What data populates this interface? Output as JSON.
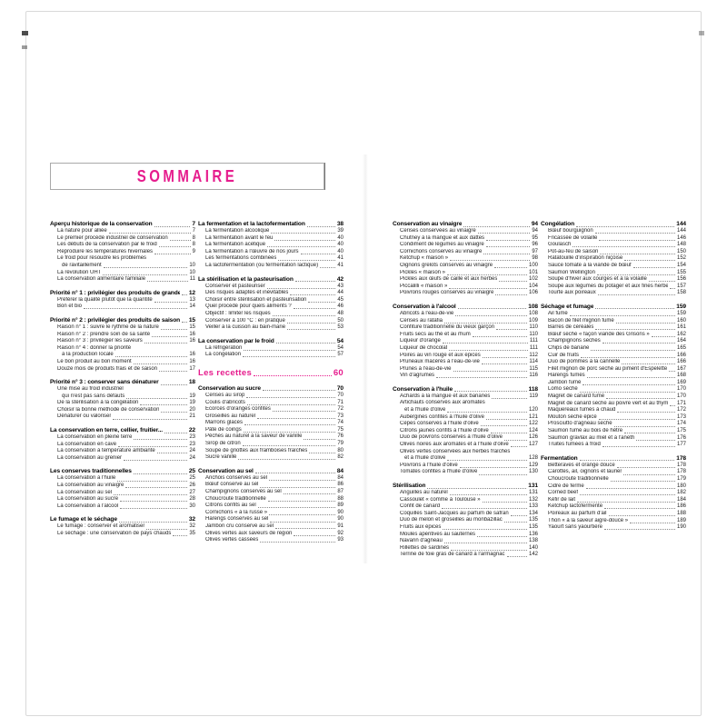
{
  "page_title": "SOMMAIRE",
  "accent_color": "#e61c8d",
  "recettes_heading": {
    "title": "Les recettes",
    "page": "60"
  },
  "columns": [
    {
      "blocks": [
        {
          "kind": "section",
          "title": "Aperçu historique de la conservation",
          "page": "7",
          "entries": [
            {
              "t": "La nature pour alliée",
              "p": "7"
            },
            {
              "t": "Le premier procédé industriel de conservation",
              "p": "8"
            },
            {
              "t": "Les débuts de la conservation par le froid",
              "p": "8"
            },
            {
              "t": "Reproduire les températures hivernales",
              "p": "9"
            },
            {
              "t": "Le froid pour résoudre les problèmes",
              "p": ""
            },
            {
              "t": "de ravitaillement",
              "p": "10",
              "cont": true
            },
            {
              "t": "La révolution UHT",
              "p": "10"
            },
            {
              "t": "La conservation alimentaire familiale",
              "p": "11"
            }
          ]
        },
        {
          "kind": "section",
          "title": "Priorité n° 1 : privilégier des produits de grande qualité",
          "page": "12",
          "entries": [
            {
              "t": "Préférer la qualité plutôt que la quantité",
              "p": "13"
            },
            {
              "t": "Bon et bio",
              "p": "14"
            }
          ]
        },
        {
          "kind": "section",
          "title": "Priorité n° 2 : privilégier des produits de saison",
          "page": "15",
          "entries": [
            {
              "t": "Raison n° 1 : suivre le rythme de la nature",
              "p": "15"
            },
            {
              "t": "Raison n° 2 : prendre soin de sa santé",
              "p": "16"
            },
            {
              "t": "Raison n° 3 : privilégier les saveurs",
              "p": "16"
            },
            {
              "t": "Raison n° 4 : donner la priorité",
              "p": ""
            },
            {
              "t": "à la production locale",
              "p": "16",
              "cont": true
            },
            {
              "t": "Le bon produit au bon moment",
              "p": "16"
            },
            {
              "t": "Douze mois de produits frais et de saison",
              "p": "17"
            }
          ]
        },
        {
          "kind": "section",
          "title": "Priorité n° 3 : conserver sans dénaturer",
          "page": "18",
          "entries": [
            {
              "t": "Une mise au froid industriel",
              "p": ""
            },
            {
              "t": "qui n'est pas sans défauts",
              "p": "19",
              "cont": true
            },
            {
              "t": "De la stérilisation à la congélation",
              "p": "19"
            },
            {
              "t": "Choisir la bonne méthode de conservation",
              "p": "20"
            },
            {
              "t": "Dénaturer ou valoriser",
              "p": "21"
            }
          ]
        },
        {
          "kind": "section",
          "title": "La conservation en terre, cellier, fruitier...",
          "page": "22",
          "entries": [
            {
              "t": "La conservation en pleine terre",
              "p": "23"
            },
            {
              "t": "La conservation en cave",
              "p": "23"
            },
            {
              "t": "La conservation à température ambiante",
              "p": "24"
            },
            {
              "t": "La conservation au grenier",
              "p": "24"
            }
          ]
        },
        {
          "kind": "section",
          "title": "Les conserves traditionnelles",
          "page": "25",
          "entries": [
            {
              "t": "La conservation à l'huile",
              "p": "25"
            },
            {
              "t": "La conservation au vinaigre",
              "p": "26"
            },
            {
              "t": "La conservation au sel",
              "p": "27"
            },
            {
              "t": "La conservation au sucre",
              "p": "28"
            },
            {
              "t": "La conservation à l'alcool",
              "p": "30"
            }
          ]
        },
        {
          "kind": "section",
          "title": "Le fumage et le séchage",
          "page": "32",
          "entries": [
            {
              "t": "Le fumage : conserver et aromatiser",
              "p": "32"
            },
            {
              "t": "Le séchage : une conservation de pays chauds",
              "p": "35"
            }
          ]
        }
      ]
    },
    {
      "blocks": [
        {
          "kind": "section",
          "title": "La fermentation et la lactofermentation",
          "page": "38",
          "entries": [
            {
              "t": "La fermentation alcoolique",
              "p": "39"
            },
            {
              "t": "La fermentation avant le feu",
              "p": "40"
            },
            {
              "t": "La fermentation acétique",
              "p": "40"
            },
            {
              "t": "La fermentation à l'œuvre de nos jours",
              "p": "40"
            },
            {
              "t": "Les fermentations combinées",
              "p": "41"
            },
            {
              "t": "La lactofermentation (ou fermentation lactique)",
              "p": "41"
            }
          ]
        },
        {
          "kind": "section",
          "title": "La stérilisation et la pasteurisation",
          "page": "42",
          "entries": [
            {
              "t": "Conserver et pasteuriser",
              "p": "43"
            },
            {
              "t": "Des risques adaptés et inévitables",
              "p": "44"
            },
            {
              "t": "Choisir entre stérilisation et pasteurisation",
              "p": "45"
            },
            {
              "t": "Quel procédé pour quels aliments ?",
              "p": "46"
            },
            {
              "t": "Objectif : limiter les risques",
              "p": "48"
            },
            {
              "t": "Conserver à 100 °C : en pratique",
              "p": "50"
            },
            {
              "t": "Veiller à la cuisson au bain-marie",
              "p": "53"
            }
          ]
        },
        {
          "kind": "section",
          "title": "La conservation par le froid",
          "page": "54",
          "entries": [
            {
              "t": "La réfrigération",
              "p": "54"
            },
            {
              "t": "La congélation",
              "p": "57"
            }
          ]
        },
        {
          "kind": "recettes"
        },
        {
          "kind": "section",
          "title": "Conservation au sucre",
          "page": "70",
          "entries": [
            {
              "t": "Cerises au sirop",
              "p": "70"
            },
            {
              "t": "Coulis d'abricots",
              "p": "71"
            },
            {
              "t": "Écorces d'oranges confites",
              "p": "72"
            },
            {
              "t": "Groseilles au naturel",
              "p": "73"
            },
            {
              "t": "Marrons glacés",
              "p": "74"
            },
            {
              "t": "Pâte de coings",
              "p": "75"
            },
            {
              "t": "Pêches au naturel à la saveur de vanille",
              "p": "76"
            },
            {
              "t": "Sirop de citron",
              "p": "79"
            },
            {
              "t": "Soupe de griottes aux framboises fraîches",
              "p": "80"
            },
            {
              "t": "Sucre vanillé",
              "p": "82"
            }
          ]
        },
        {
          "kind": "section",
          "title": "Conservation au sel",
          "page": "84",
          "entries": [
            {
              "t": "Anchois conservés au sel",
              "p": "84"
            },
            {
              "t": "Bœuf conservé au sel",
              "p": "86"
            },
            {
              "t": "Champignons conservés au sel",
              "p": "87"
            },
            {
              "t": "Choucroute traditionnelle",
              "p": "88"
            },
            {
              "t": "Citrons confits au sel",
              "p": "89"
            },
            {
              "t": "Cornichons « à la russe »",
              "p": "90"
            },
            {
              "t": "Harengs conservés au sel",
              "p": "90"
            },
            {
              "t": "Jambon cru conservé au sel",
              "p": "91"
            },
            {
              "t": "Olives vertes aux saveurs de région",
              "p": "92"
            },
            {
              "t": "Olives vertes cassées",
              "p": "93"
            }
          ]
        }
      ]
    },
    {
      "blocks": [
        {
          "kind": "section",
          "title": "Conservation au vinaigre",
          "page": "94",
          "entries": [
            {
              "t": "Cerises conservées au vinaigre",
              "p": "94"
            },
            {
              "t": "Chutney à la mangue et aux dattes",
              "p": "95"
            },
            {
              "t": "Condiment de légumes au vinaigre",
              "p": "96"
            },
            {
              "t": "Cornichons conservés au vinaigre",
              "p": "97"
            },
            {
              "t": "Ketchup « maison »",
              "p": "98"
            },
            {
              "t": "Oignons grelots conservés au vinaigre",
              "p": "100"
            },
            {
              "t": "Pickles « maison »",
              "p": "101"
            },
            {
              "t": "Pickles aux œufs de caille et aux herbes",
              "p": "102"
            },
            {
              "t": "Piccalilli « maison »",
              "p": "104"
            },
            {
              "t": "Poivrons rouges conservés au vinaigre",
              "p": "106"
            }
          ]
        },
        {
          "kind": "section",
          "title": "Conservation à l'alcool",
          "page": "108",
          "entries": [
            {
              "t": "Abricots à l'eau-de-vie",
              "p": "108"
            },
            {
              "t": "Cerises au ratafia",
              "p": "109"
            },
            {
              "t": "Confiture traditionnelle du vieux garçon",
              "p": "110"
            },
            {
              "t": "Fruits secs au thé et au rhum",
              "p": "110"
            },
            {
              "t": "Liqueur d'orange",
              "p": "111"
            },
            {
              "t": "Liqueur de chocolat",
              "p": "111"
            },
            {
              "t": "Poires au vin rouge et aux épices",
              "p": "112"
            },
            {
              "t": "Pruneaux macérés à l'eau-de-vie",
              "p": "114"
            },
            {
              "t": "Prunes à l'eau-de-vie",
              "p": "115"
            },
            {
              "t": "Vin d'agrumes",
              "p": "116"
            }
          ]
        },
        {
          "kind": "section",
          "title": "Conservation à l'huile",
          "page": "118",
          "entries": [
            {
              "t": "Achards à la mangue et aux bananes",
              "p": "119"
            },
            {
              "t": "Artichauts conservés aux aromates",
              "p": ""
            },
            {
              "t": "et à l'huile d'olive",
              "p": "120",
              "cont": true
            },
            {
              "t": "Aubergines confites à l'huile d'olive",
              "p": "121"
            },
            {
              "t": "Cèpes conservés à l'huile d'olive",
              "p": "122"
            },
            {
              "t": "Citrons jaunes confits à l'huile d'olive",
              "p": "124"
            },
            {
              "t": "Duo de poivrons conservés à l'huile d'olive",
              "p": "126"
            },
            {
              "t": "Olives noires aux aromates et à l'huile d'olive",
              "p": "127"
            },
            {
              "t": "Olives vertes conservées aux herbes fraîches",
              "p": ""
            },
            {
              "t": "et à l'huile d'olive",
              "p": "128",
              "cont": true
            },
            {
              "t": "Poivrons à l'huile d'olive",
              "p": "129"
            },
            {
              "t": "Tomates confites à l'huile d'olive",
              "p": "130"
            }
          ]
        },
        {
          "kind": "section",
          "title": "Stérilisation",
          "page": "131",
          "entries": [
            {
              "t": "Anguilles au naturel",
              "p": "131"
            },
            {
              "t": "Cassoulet « comme à Toulouse »",
              "p": "132"
            },
            {
              "t": "Confit de canard",
              "p": "133"
            },
            {
              "t": "Coquilles Saint-Jacques au parfum de safran",
              "p": "134"
            },
            {
              "t": "Duo de melon et groseilles au monbazillac",
              "p": "135"
            },
            {
              "t": "Fruits aux épices",
              "p": "135"
            },
            {
              "t": "Moules apéritives au sauternes",
              "p": "136"
            },
            {
              "t": "Navarin d'agneau",
              "p": "138"
            },
            {
              "t": "Rillettes de sardines",
              "p": "140"
            },
            {
              "t": "Terrine de foie gras de canard à l'armagnac",
              "p": "142"
            }
          ]
        }
      ]
    },
    {
      "blocks": [
        {
          "kind": "section",
          "title": "Congélation",
          "page": "144",
          "entries": [
            {
              "t": "Bœuf bourguignon",
              "p": "144"
            },
            {
              "t": "Fricassée de volaille",
              "p": "146"
            },
            {
              "t": "Goulasch",
              "p": "148"
            },
            {
              "t": "Pot-au-feu de saison",
              "p": "150"
            },
            {
              "t": "Ratatouille d'inspiration niçoise",
              "p": "152"
            },
            {
              "t": "Sauce tomate à la viande de bœuf",
              "p": "154"
            },
            {
              "t": "Saumon Wellington",
              "p": "155"
            },
            {
              "t": "Soupe d'hiver aux courges et à la volaille",
              "p": "156"
            },
            {
              "t": "Soupe aux légumes du potager et aux fines herbes",
              "p": "157"
            },
            {
              "t": "Tourte aux poireaux",
              "p": "158"
            }
          ]
        },
        {
          "kind": "section",
          "title": "Séchage et fumage",
          "page": "159",
          "entries": [
            {
              "t": "Ail fumé",
              "p": "159"
            },
            {
              "t": "Bacon de filet mignon fumé",
              "p": "160"
            },
            {
              "t": "Barres de céréales",
              "p": "161"
            },
            {
              "t": "Bœuf séché « façon viande des Grisons »",
              "p": "162"
            },
            {
              "t": "Champignons séchés",
              "p": "164"
            },
            {
              "t": "Chips de banane",
              "p": "165"
            },
            {
              "t": "Cuir de fruits",
              "p": "166"
            },
            {
              "t": "Duo de pommes à la cannelle",
              "p": "166"
            },
            {
              "t": "Filet mignon de porc séché au piment d'Espelette",
              "p": "167"
            },
            {
              "t": "Harengs fumés",
              "p": "168"
            },
            {
              "t": "Jambon fumé",
              "p": "169"
            },
            {
              "t": "Lomo séché",
              "p": "170"
            },
            {
              "t": "Magret de canard fumé",
              "p": "170"
            },
            {
              "t": "Magret de canard séché au poivre vert et au thym",
              "p": "171"
            },
            {
              "t": "Maquereaux fumés à chaud",
              "p": "172"
            },
            {
              "t": "Mouton séché épicé",
              "p": "173"
            },
            {
              "t": "Prosciutto d'agneau séché",
              "p": "174"
            },
            {
              "t": "Saumon fumé au bois de hêtre",
              "p": "175"
            },
            {
              "t": "Saumon gravlax au miel et à l'aneth",
              "p": "176"
            },
            {
              "t": "Truites fumées à froid",
              "p": "177"
            }
          ]
        },
        {
          "kind": "section",
          "title": "Fermentation",
          "page": "178",
          "entries": [
            {
              "t": "Betteraves et orange douce",
              "p": "178"
            },
            {
              "t": "Carottes, ail, oignons et laurier",
              "p": "178"
            },
            {
              "t": "Choucroute traditionnelle",
              "p": "179"
            },
            {
              "t": "Cidre de ferme",
              "p": "180"
            },
            {
              "t": "Corned beef",
              "p": "182"
            },
            {
              "t": "Kéfir de lait",
              "p": "184"
            },
            {
              "t": "Ketchup lactofermenté",
              "p": "186"
            },
            {
              "t": "Poireaux au parfum d'ail",
              "p": "188"
            },
            {
              "t": "Thon « à la saveur aigre-douce »",
              "p": "189"
            },
            {
              "t": "Yaourt sans yaourtière",
              "p": "190"
            }
          ]
        }
      ]
    }
  ]
}
